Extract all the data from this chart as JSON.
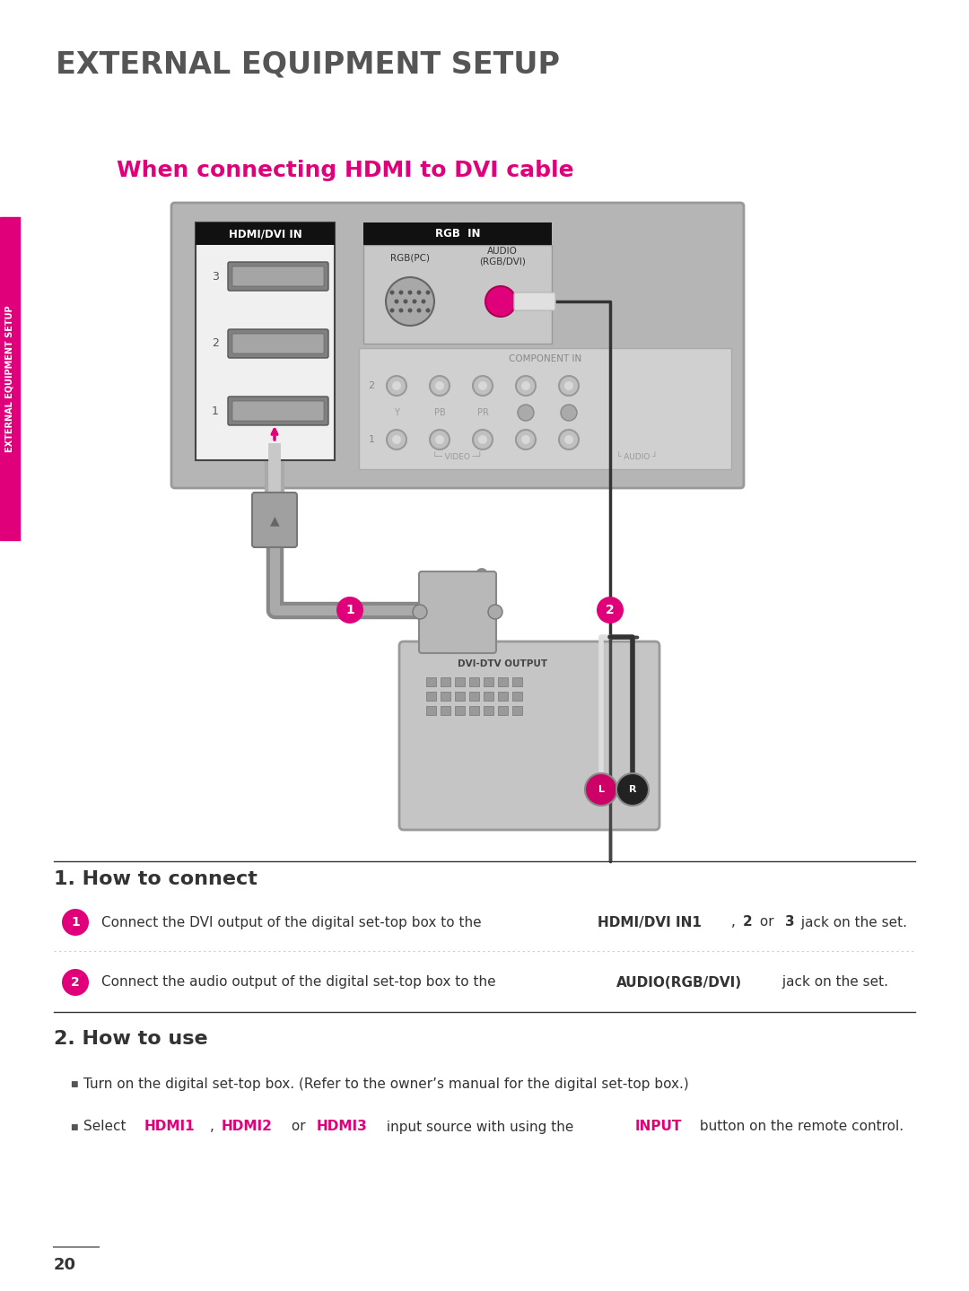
{
  "title": "EXTERNAL EQUIPMENT SETUP",
  "subtitle": "When connecting HDMI to DVI cable",
  "section1_title": "1. How to connect",
  "section2_title": "2. How to use",
  "step1_parts": [
    [
      "Connect the DVI output of the digital set-top box to the ",
      false
    ],
    [
      "HDMI/DVI IN1",
      true
    ],
    [
      ", ",
      false
    ],
    [
      "2",
      true
    ],
    [
      " or ",
      false
    ],
    [
      "3",
      true
    ],
    [
      " jack on the set.",
      false
    ]
  ],
  "step2_parts": [
    [
      "Connect the audio output of the digital set-top box to the ",
      false
    ],
    [
      "AUDIO(RGB/DVI)",
      true
    ],
    [
      " jack on the set.",
      false
    ]
  ],
  "bullet1": "Turn on the digital set-top box. (Refer to the owner’s manual for the digital set-top box.)",
  "bullet2_parts": [
    [
      "Select ",
      false,
      "#333333"
    ],
    [
      "HDMI1",
      true,
      "#e0007a"
    ],
    [
      ", ",
      false,
      "#333333"
    ],
    [
      "HDMI2",
      true,
      "#e0007a"
    ],
    [
      " or ",
      false,
      "#333333"
    ],
    [
      "HDMI3",
      true,
      "#e0007a"
    ],
    [
      " input source with using the ",
      false,
      "#333333"
    ],
    [
      "INPUT",
      true,
      "#e0007a"
    ],
    [
      " button on the remote control.",
      false,
      "#333333"
    ]
  ],
  "page_number": "20",
  "sidebar_text": "EXTERNAL EQUIPMENT SETUP",
  "pink": "#e0007a",
  "dark": "#444444",
  "bg": "#ffffff"
}
